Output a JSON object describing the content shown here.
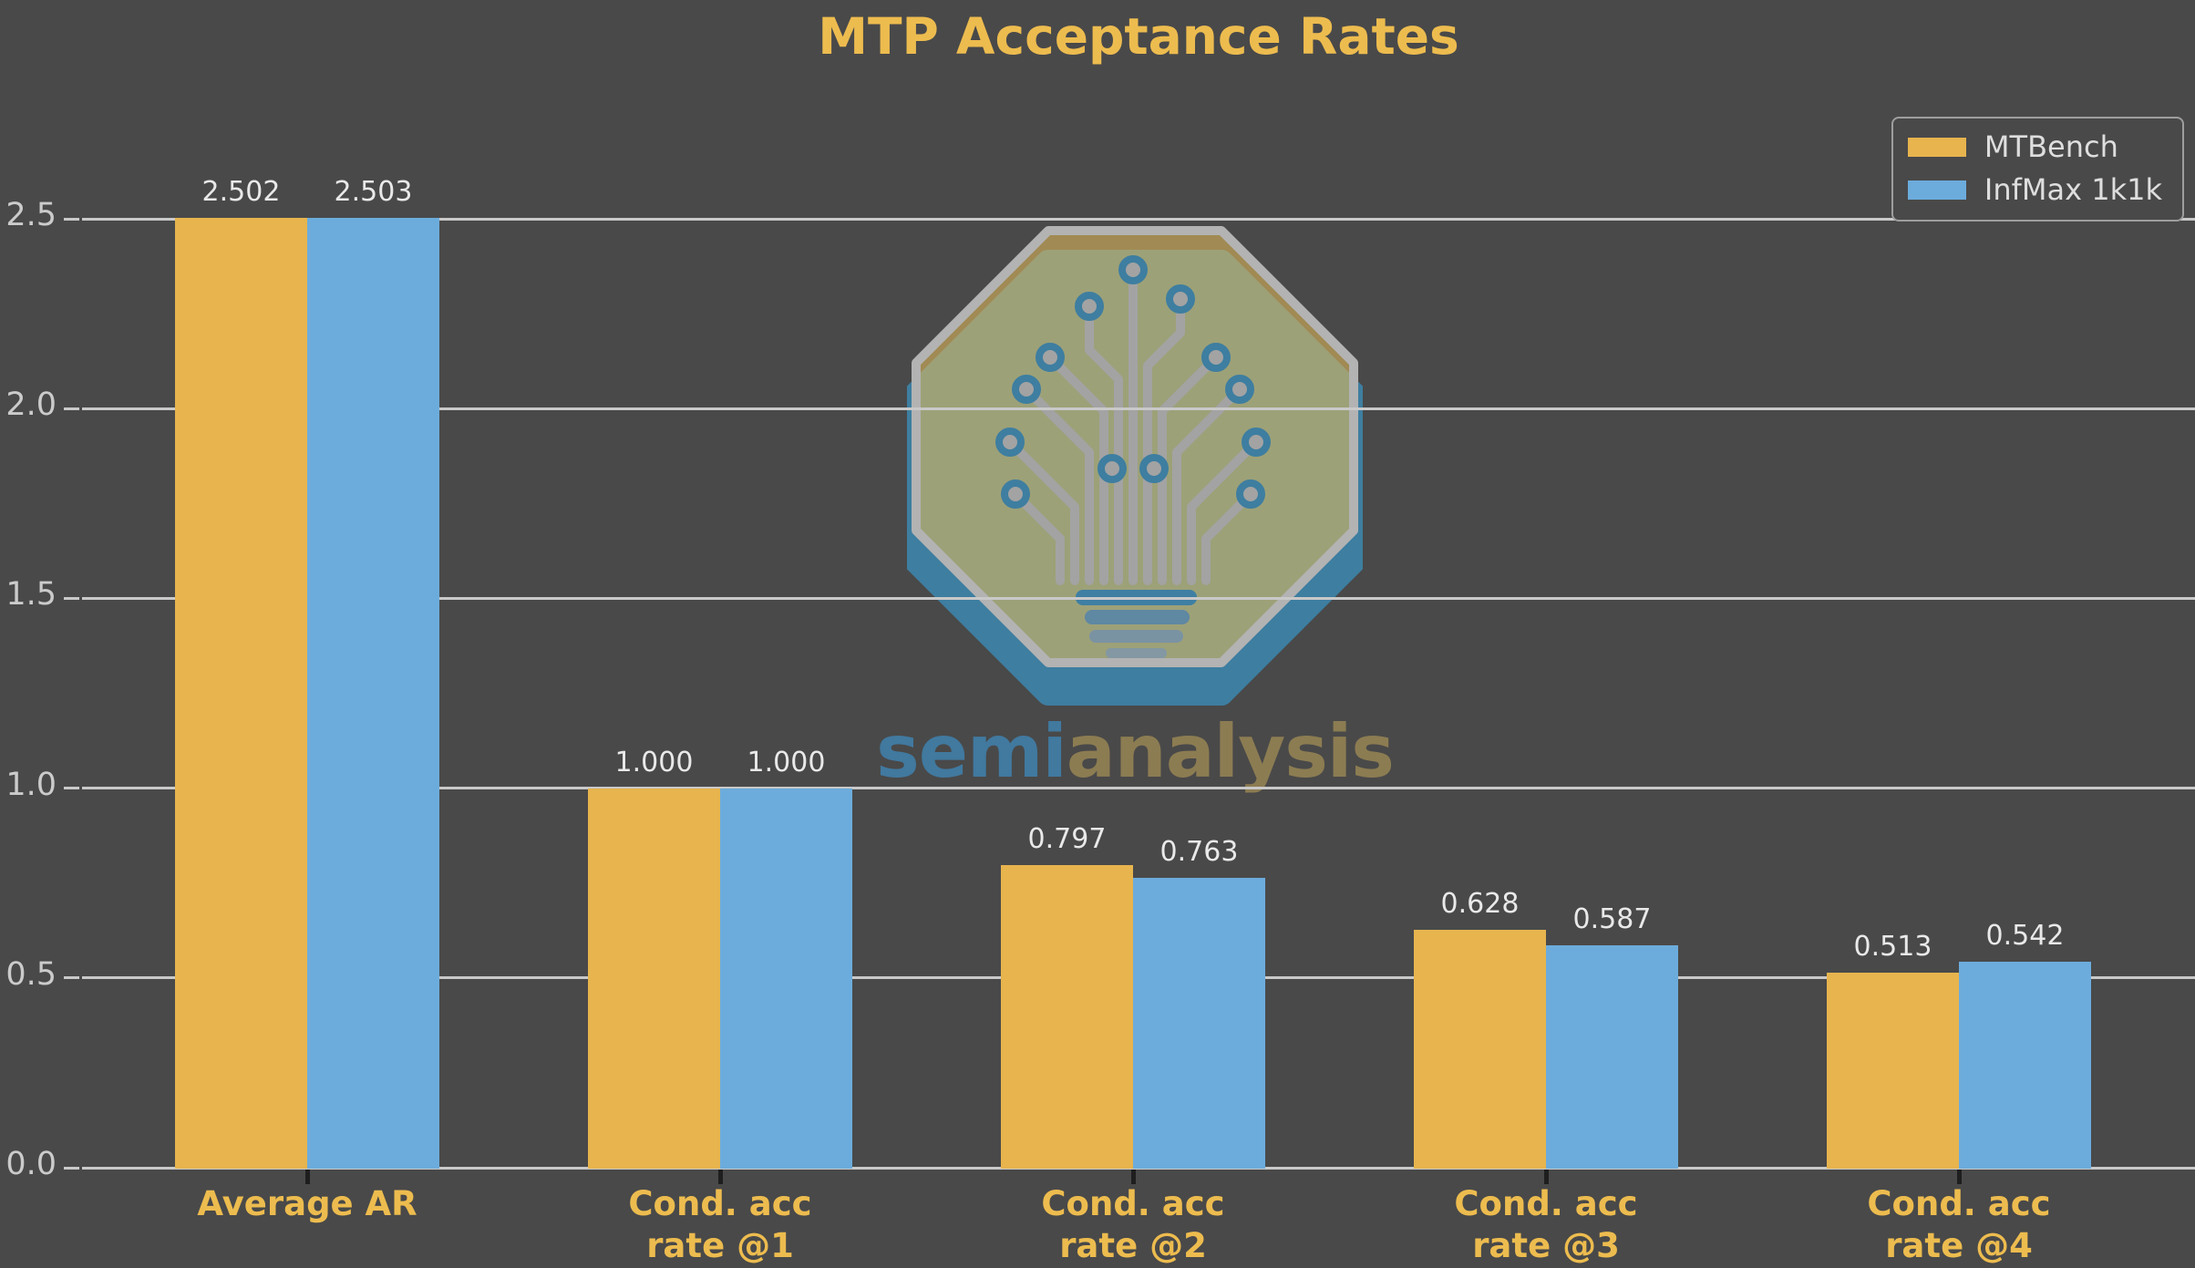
{
  "title": "MTP Acceptance Rates",
  "watermark": {
    "brand_prefix": "semi",
    "brand_suffix": "analysis"
  },
  "chart_data": {
    "type": "bar",
    "title": "MTP Acceptance Rates",
    "categories": [
      "Average AR",
      "Cond. acc\nrate @1",
      "Cond. acc\nrate @2",
      "Cond. acc\nrate @3",
      "Cond. acc\nrate @4"
    ],
    "series": [
      {
        "name": "MTBench",
        "color": "#e7b44e",
        "values": [
          2.502,
          1.0,
          0.797,
          0.628,
          0.513
        ],
        "value_labels": [
          "2.502",
          "1.000",
          "0.797",
          "0.628",
          "0.513"
        ]
      },
      {
        "name": "InfMax 1k1k",
        "color": "#6cacdc",
        "values": [
          2.503,
          1.0,
          0.763,
          0.587,
          0.542
        ],
        "value_labels": [
          "2.503",
          "1.000",
          "0.763",
          "0.587",
          "0.542"
        ]
      }
    ],
    "ylim": [
      0,
      2.5
    ],
    "yticks": [
      0,
      0.5,
      1,
      1.5,
      2,
      2.5
    ],
    "ytick_labels": [
      "0.0",
      "0.5",
      "1.0",
      "1.5",
      "2.0",
      "2.5"
    ],
    "grid": true,
    "legend_position": "upper right",
    "xlabel": "",
    "ylabel": ""
  },
  "colors": {
    "background": "#494949",
    "title": "#edbc4f",
    "category_label": "#edbc4f",
    "grid": "#c9c9c9",
    "ytick_label": "#cbcbcb",
    "xtick_mark": "#1e1e1e",
    "value_label": "#e9e9e9",
    "legend_text": "#dedede",
    "legend_border": "#9e9e9e",
    "mtbench_bar": "#e7b44e",
    "infmax_bar": "#6cacdc",
    "watermark_semi": "#41799f",
    "watermark_analysis": "#8c7c52",
    "watermark_octagon": "#a78f53",
    "watermark_shadow": "#3e7ea0"
  }
}
